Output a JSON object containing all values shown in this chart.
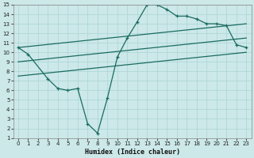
{
  "title": "",
  "xlabel": "Humidex (Indice chaleur)",
  "bg_color": "#cce8e8",
  "grid_color": "#aad4d4",
  "line_color": "#1a6b60",
  "xlim": [
    -0.5,
    23.5
  ],
  "ylim": [
    1,
    15
  ],
  "xticks": [
    0,
    1,
    2,
    3,
    4,
    5,
    6,
    7,
    8,
    9,
    10,
    11,
    12,
    13,
    14,
    15,
    16,
    17,
    18,
    19,
    20,
    21,
    22,
    23
  ],
  "yticks": [
    1,
    2,
    3,
    4,
    5,
    6,
    7,
    8,
    9,
    10,
    11,
    12,
    13,
    14,
    15
  ],
  "curve1_x": [
    0,
    1,
    3,
    4,
    5,
    6,
    7,
    8,
    9,
    10,
    11,
    12,
    13,
    14,
    15,
    16,
    17,
    18,
    19,
    20,
    21,
    22,
    23
  ],
  "curve1_y": [
    10.5,
    9.8,
    7.2,
    6.2,
    6.0,
    6.2,
    2.5,
    1.5,
    5.2,
    9.5,
    11.5,
    13.2,
    15.0,
    15.0,
    14.5,
    13.8,
    13.8,
    13.5,
    13.0,
    13.0,
    12.8,
    10.8,
    10.5
  ],
  "line1_x": [
    0,
    23
  ],
  "line1_y": [
    10.5,
    13.0
  ],
  "line2_x": [
    0,
    23
  ],
  "line2_y": [
    9.0,
    11.5
  ],
  "line3_x": [
    0,
    23
  ],
  "line3_y": [
    7.5,
    10.0
  ]
}
